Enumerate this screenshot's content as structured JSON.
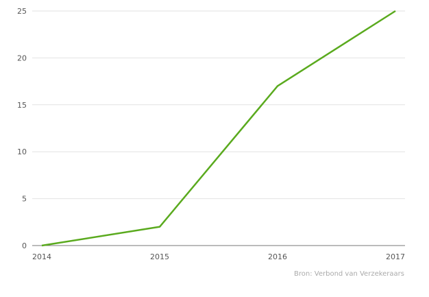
{
  "chart_data": {
    "type": "line",
    "title": "",
    "xlabel": "",
    "ylabel": "",
    "x": [
      "2014",
      "2015",
      "2016",
      "2017"
    ],
    "series": [
      {
        "values": [
          0,
          2,
          17,
          25
        ],
        "color": "#5aaa1e"
      }
    ],
    "ylim": [
      0,
      25
    ],
    "yticks": [
      "0",
      "5",
      "10",
      "15",
      "20",
      "25"
    ],
    "grid": true,
    "source": "Bron: Verbond van Verzekeraars"
  }
}
